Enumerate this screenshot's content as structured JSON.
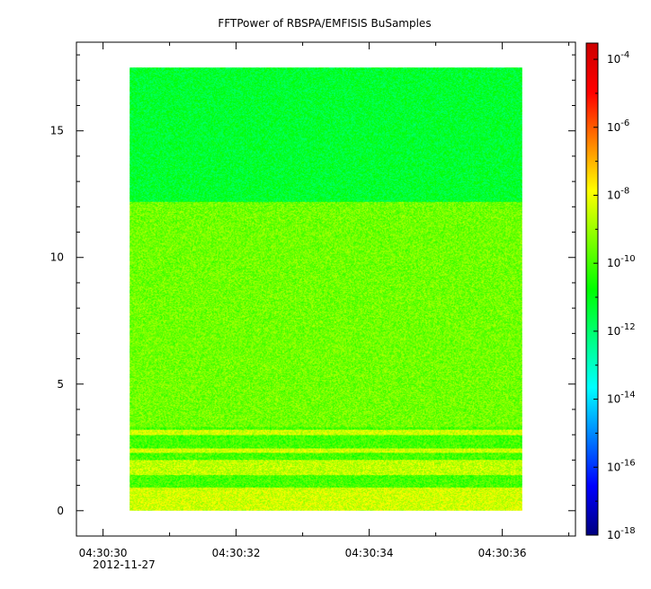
{
  "chart_data": {
    "type": "heatmap",
    "title": "FFTPower of RBSPA/EMFISIS  BuSamples",
    "xlabel": "",
    "ylabel": "",
    "x": {
      "range": [
        "04:30:29.6",
        "04:30:37.1"
      ],
      "data_range": [
        "04:30:30.4",
        "04:30:36.3"
      ],
      "ticks": [
        "04:30:30",
        "04:30:32",
        "04:30:34",
        "04:30:36"
      ],
      "date_label": "2012-11-27"
    },
    "y": {
      "range": [
        -1,
        18.5
      ],
      "data_range": [
        0,
        17.5
      ],
      "ticks": [
        0,
        5,
        10,
        15
      ]
    },
    "colorbar": {
      "scale": "log",
      "range": [
        1e-18,
        0.0003
      ],
      "ticks": [
        "10^-18",
        "10^-16",
        "10^-14",
        "10^-12",
        "10^-10",
        "10^-8",
        "10^-6",
        "10^-4"
      ],
      "colors": [
        "#00007f",
        "#0000ff",
        "#0080ff",
        "#00ffff",
        "#00ff80",
        "#00ff00",
        "#80ff00",
        "#ffff00",
        "#ff8000",
        "#ff0000",
        "#cc0000"
      ]
    },
    "bands": [
      {
        "y_range": [
          12.2,
          17.5
        ],
        "log_power": -11.3
      },
      {
        "y_range": [
          3.3,
          12.2
        ],
        "log_power": -9.5
      },
      {
        "y_range": [
          3.0,
          3.2
        ],
        "log_power": -8.4
      },
      {
        "y_range": [
          2.3,
          2.45
        ],
        "log_power": -8.4
      },
      {
        "y_range": [
          1.4,
          2.0
        ],
        "log_power": -8.6
      },
      {
        "y_range": [
          0.0,
          0.9
        ],
        "log_power": -8.4
      }
    ]
  }
}
